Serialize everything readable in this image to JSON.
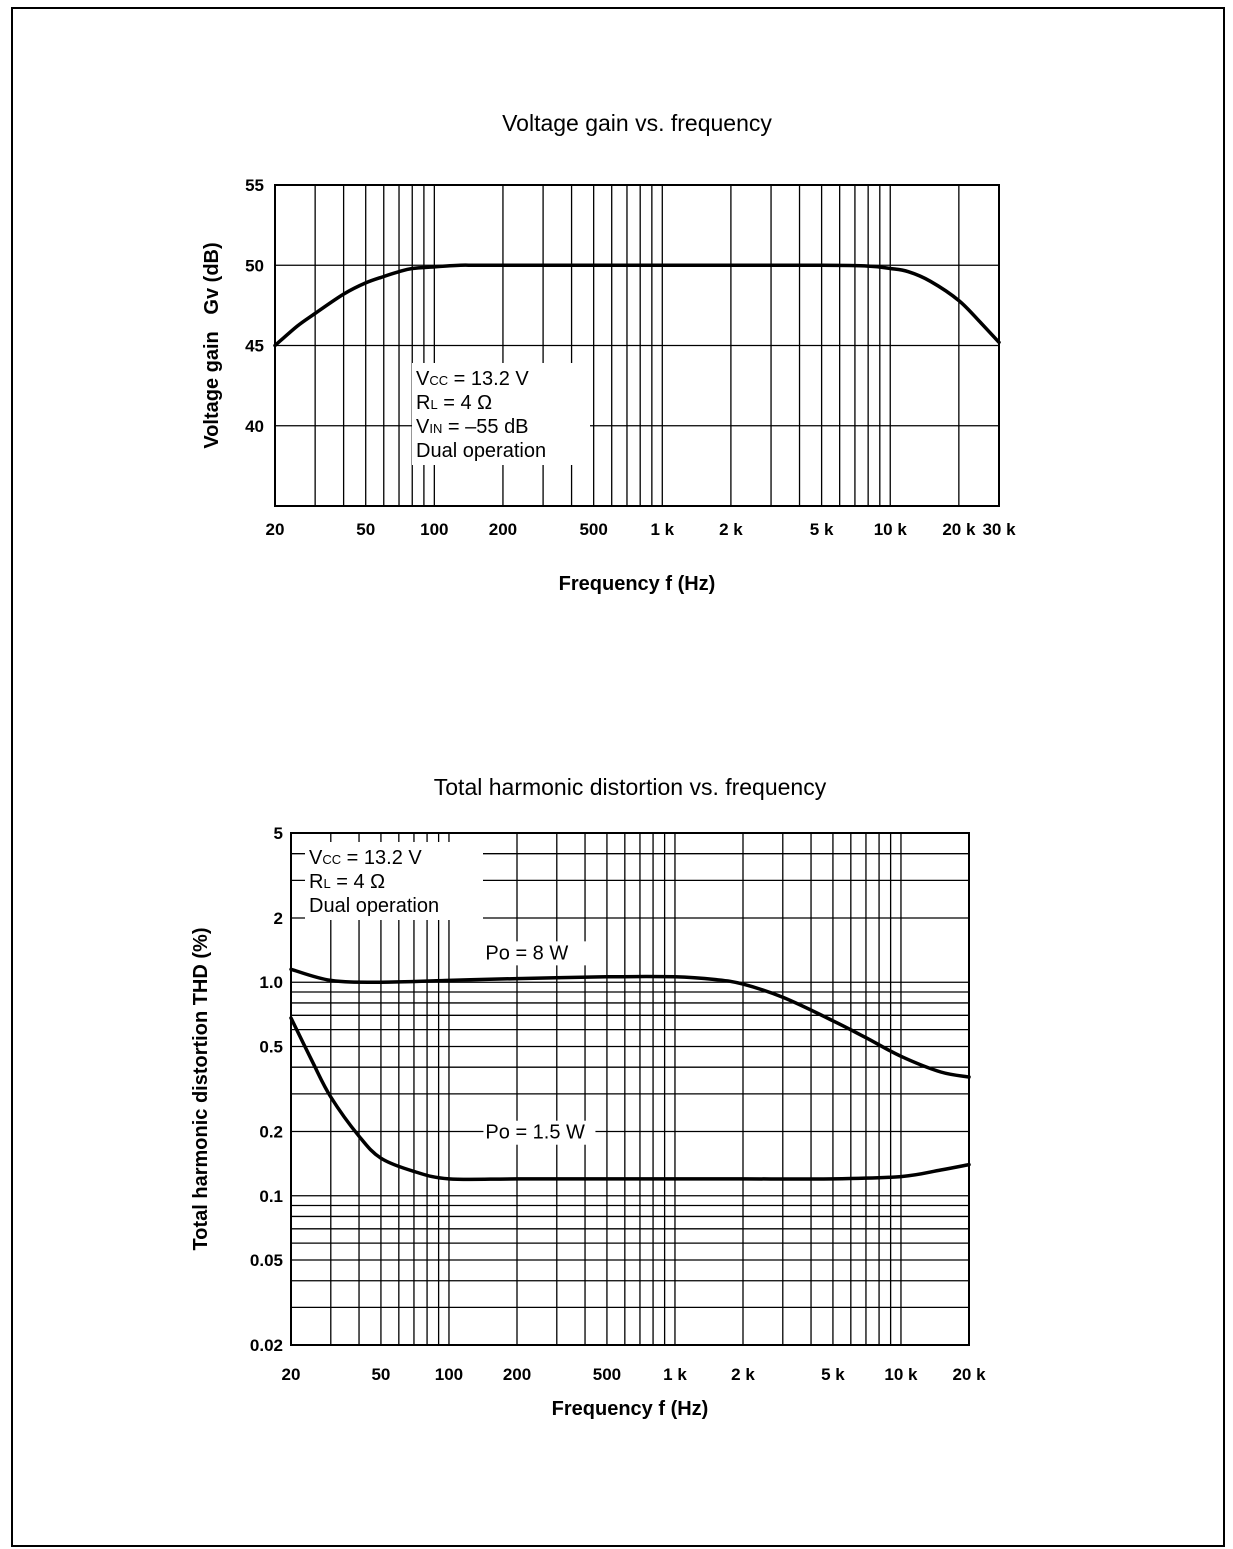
{
  "chart_data": [
    {
      "type": "line",
      "title": "Voltage gain vs. frequency",
      "xlabel": "Frequency f (Hz)",
      "ylabel": "Voltage gain   Gv (dB)",
      "x_scale": "log",
      "xlim": [
        20,
        30000
      ],
      "ylim": [
        35,
        55
      ],
      "grid": true,
      "x_ticks": [
        {
          "value": 20,
          "label": "20"
        },
        {
          "value": 50,
          "label": "50"
        },
        {
          "value": 100,
          "label": "100"
        },
        {
          "value": 200,
          "label": "200"
        },
        {
          "value": 500,
          "label": "500"
        },
        {
          "value": 1000,
          "label": "1 k"
        },
        {
          "value": 2000,
          "label": "2 k"
        },
        {
          "value": 5000,
          "label": "5 k"
        },
        {
          "value": 10000,
          "label": "10 k"
        },
        {
          "value": 20000,
          "label": "20 k"
        },
        {
          "value": 30000,
          "label": "30 k"
        }
      ],
      "y_ticks": [
        {
          "value": 55,
          "label": "55"
        },
        {
          "value": 50,
          "label": "50"
        },
        {
          "value": 45,
          "label": "45"
        },
        {
          "value": 40,
          "label": "40"
        }
      ],
      "annotations": [
        "Vcc = 13.2 V",
        "RL = 4 Ω",
        "VIN = –55 dB",
        "Dual operation"
      ],
      "series": [
        {
          "x": [
            20,
            25,
            30,
            40,
            50,
            60,
            70,
            80,
            100,
            130,
            150,
            200,
            500,
            1000,
            2000,
            5000,
            8000,
            10000,
            12000,
            15000,
            20000,
            25000,
            30000
          ],
          "y": [
            45.0,
            46.2,
            47.0,
            48.2,
            48.9,
            49.3,
            49.6,
            49.8,
            49.9,
            50.0,
            50.0,
            50.0,
            50.0,
            50.0,
            50.0,
            50.0,
            49.95,
            49.8,
            49.6,
            49.0,
            47.8,
            46.4,
            45.2
          ]
        }
      ]
    },
    {
      "type": "line",
      "title": "Total harmonic distortion vs. frequency",
      "xlabel": "Frequency f (Hz)",
      "ylabel": "Total harmonic distortion THD (%)",
      "x_scale": "log",
      "y_scale": "log",
      "xlim": [
        20,
        20000
      ],
      "ylim": [
        0.02,
        5
      ],
      "grid": true,
      "x_ticks": [
        {
          "value": 20,
          "label": "20"
        },
        {
          "value": 50,
          "label": "50"
        },
        {
          "value": 100,
          "label": "100"
        },
        {
          "value": 200,
          "label": "200"
        },
        {
          "value": 500,
          "label": "500"
        },
        {
          "value": 1000,
          "label": "1 k"
        },
        {
          "value": 2000,
          "label": "2 k"
        },
        {
          "value": 5000,
          "label": "5 k"
        },
        {
          "value": 10000,
          "label": "10 k"
        },
        {
          "value": 20000,
          "label": "20 k"
        }
      ],
      "y_ticks": [
        {
          "value": 5,
          "label": "5"
        },
        {
          "value": 2,
          "label": "2"
        },
        {
          "value": 1.0,
          "label": "1.0"
        },
        {
          "value": 0.5,
          "label": "0.5"
        },
        {
          "value": 0.2,
          "label": "0.2"
        },
        {
          "value": 0.1,
          "label": "0.1"
        },
        {
          "value": 0.05,
          "label": "0.05"
        },
        {
          "value": 0.02,
          "label": "0.02"
        }
      ],
      "annotations": [
        "Vcc = 13.2 V",
        "RL = 4 Ω",
        "Dual operation"
      ],
      "series": [
        {
          "name": "Po = 8 W",
          "x": [
            20,
            30,
            50,
            100,
            200,
            500,
            1000,
            1500,
            2000,
            3000,
            5000,
            7000,
            10000,
            15000,
            20000
          ],
          "y": [
            1.15,
            1.02,
            1.0,
            1.02,
            1.04,
            1.06,
            1.06,
            1.03,
            0.98,
            0.85,
            0.66,
            0.55,
            0.45,
            0.38,
            0.36
          ]
        },
        {
          "name": "Po = 1.5 W",
          "x": [
            20,
            25,
            30,
            40,
            50,
            70,
            100,
            200,
            500,
            1000,
            2000,
            5000,
            10000,
            15000,
            20000
          ],
          "y": [
            0.68,
            0.42,
            0.29,
            0.19,
            0.15,
            0.13,
            0.12,
            0.12,
            0.12,
            0.12,
            0.12,
            0.12,
            0.123,
            0.132,
            0.14
          ]
        }
      ]
    }
  ]
}
